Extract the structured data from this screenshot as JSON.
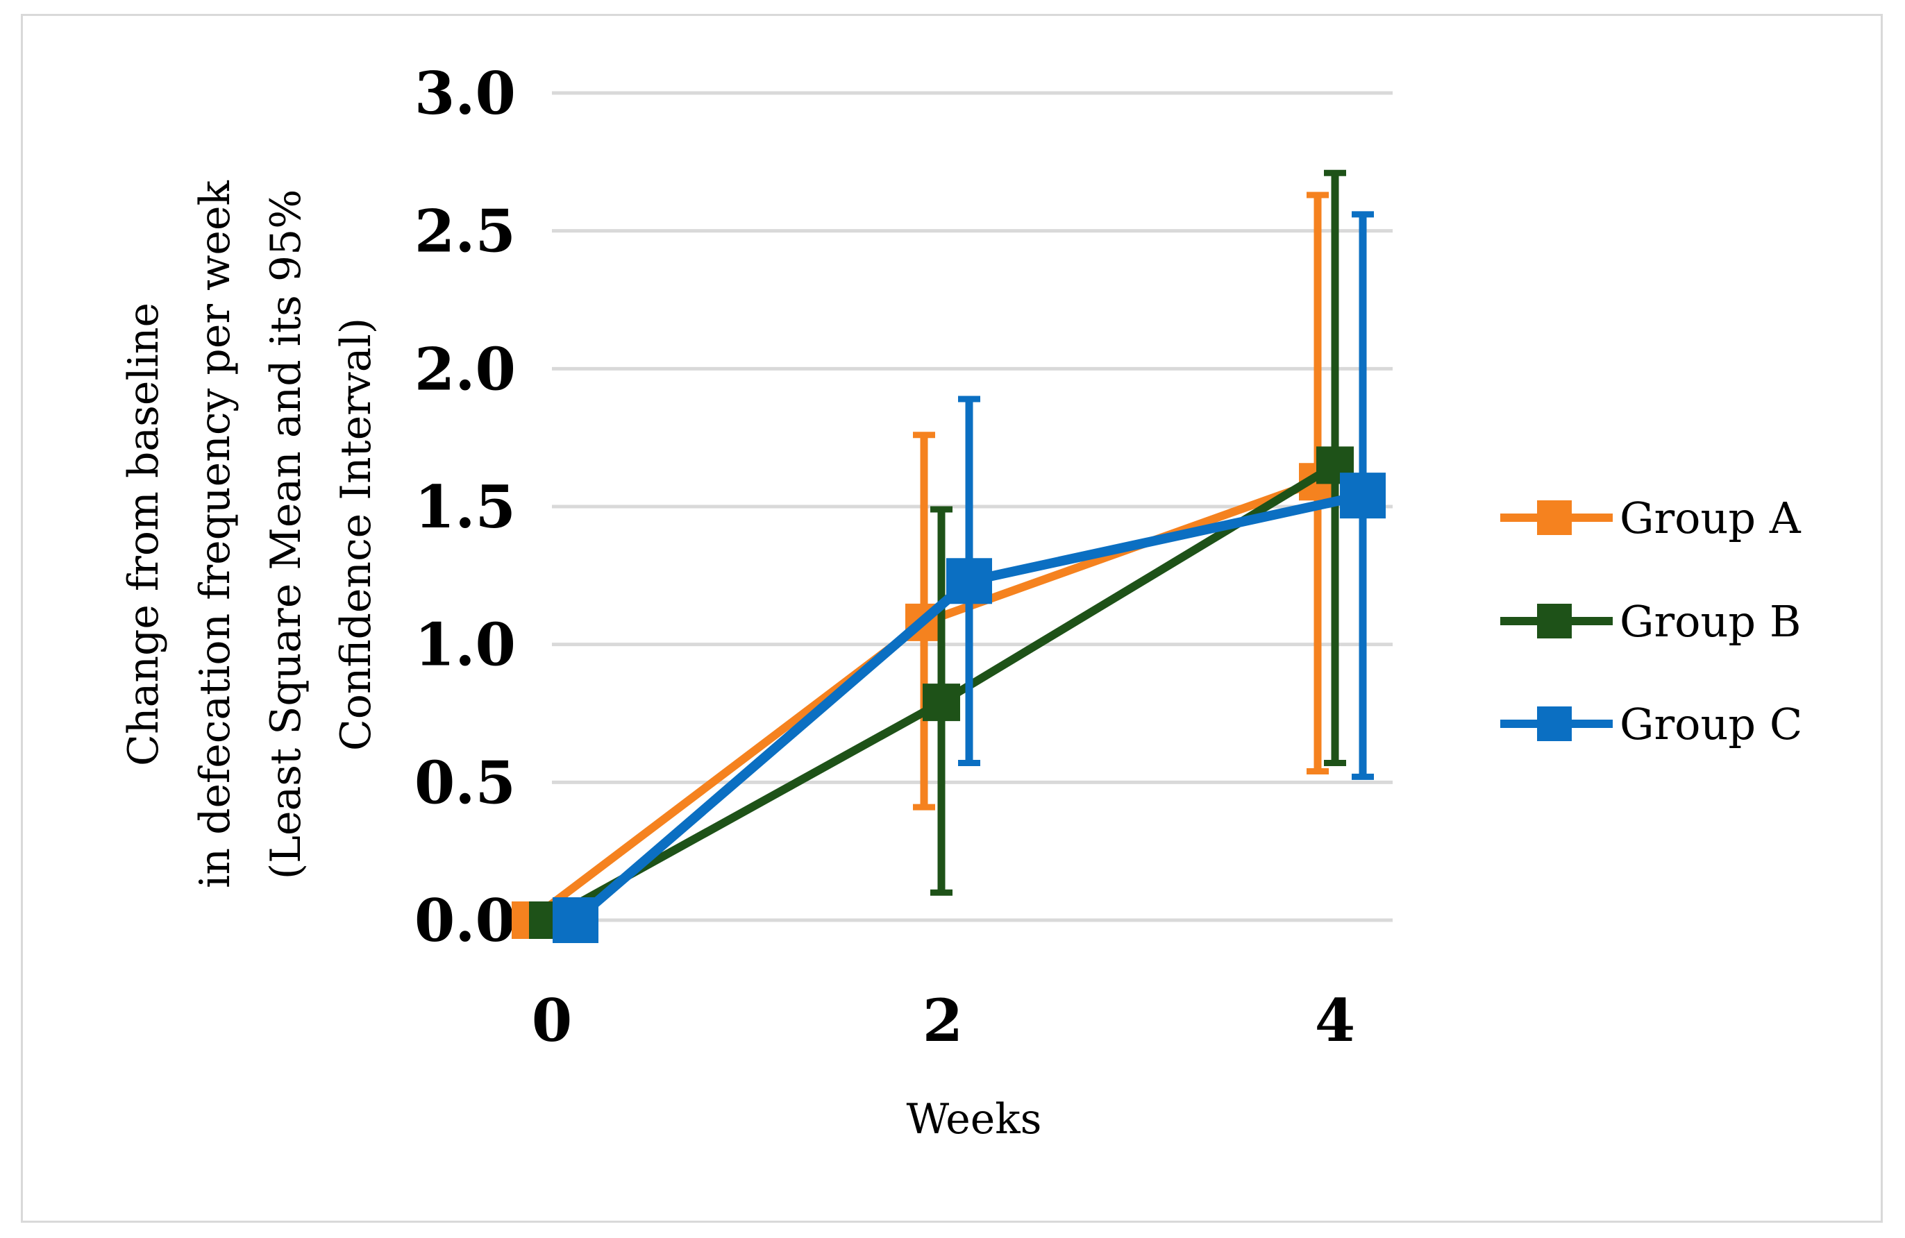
{
  "chart_data": {
    "type": "line",
    "title": "",
    "xlabel": "Weeks",
    "ylabel_lines": [
      "Change from baseline",
      "in defecation frequency per week",
      "(Least Square Mean and its 95%",
      "Confidence Interval)"
    ],
    "x": [
      0,
      2,
      4
    ],
    "x_tick_labels": [
      "0",
      "2",
      "4"
    ],
    "ylim": [
      0,
      3.0
    ],
    "y_ticks": [
      0.0,
      0.5,
      1.0,
      1.5,
      2.0,
      2.5,
      3.0
    ],
    "y_tick_labels": [
      "0.0",
      "0.5",
      "1.0",
      "1.5",
      "2.0",
      "2.5",
      "3.0"
    ],
    "grid": true,
    "legend_position": "right",
    "error_bars": "95% confidence interval",
    "series": [
      {
        "name": "Group A",
        "color": "#f5821f",
        "values": [
          0.0,
          1.08,
          1.59
        ],
        "ci_low": [
          null,
          0.41,
          0.54
        ],
        "ci_high": [
          null,
          1.76,
          2.63
        ]
      },
      {
        "name": "Group B",
        "color": "#1e5218",
        "values": [
          0.0,
          0.79,
          1.65
        ],
        "ci_low": [
          null,
          0.1,
          0.57
        ],
        "ci_high": [
          null,
          1.49,
          2.71
        ]
      },
      {
        "name": "Group C",
        "color": "#0b6fc2",
        "values": [
          0.0,
          1.23,
          1.54
        ],
        "ci_low": [
          null,
          0.57,
          0.52
        ],
        "ci_high": [
          null,
          1.89,
          2.56
        ]
      }
    ]
  }
}
